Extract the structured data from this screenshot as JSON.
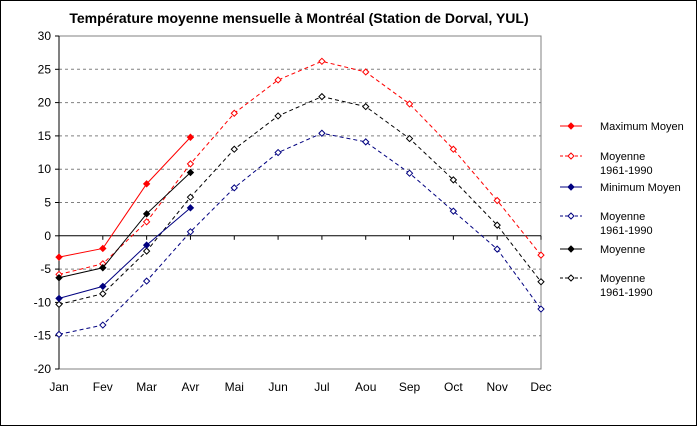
{
  "chart_data": {
    "type": "line",
    "title": "Température moyenne mensuelle à Montréal (Station de Dorval, YUL)",
    "xlabel": "",
    "ylabel": "",
    "categories": [
      "Jan",
      "Fev",
      "Mar",
      "Avr",
      "Mai",
      "Jun",
      "Jul",
      "Aou",
      "Sep",
      "Oct",
      "Nov",
      "Dec"
    ],
    "ylim": [
      -20,
      30
    ],
    "yticks": [
      -20,
      -15,
      -10,
      -5,
      0,
      5,
      10,
      15,
      20,
      25,
      30
    ],
    "grid": "horizontal-dashed",
    "legend_position": "right",
    "series": [
      {
        "name": "Maximum Moyen",
        "color": "#ff0000",
        "style": "solid",
        "marker": "filled-diamond",
        "values": [
          -3.2,
          -1.9,
          7.8,
          14.8,
          null,
          null,
          null,
          null,
          null,
          null,
          null,
          null
        ]
      },
      {
        "name": "Moyenne\n1961-1990",
        "color": "#ff0000",
        "style": "dashed",
        "marker": "open-diamond",
        "values": [
          -5.8,
          -4.2,
          2.1,
          10.8,
          18.4,
          23.4,
          26.2,
          24.6,
          19.8,
          13.0,
          5.3,
          -2.9
        ]
      },
      {
        "name": "Minimum Moyen",
        "color": "#000080",
        "style": "solid",
        "marker": "filled-diamond",
        "values": [
          -9.4,
          -7.6,
          -1.4,
          4.2,
          null,
          null,
          null,
          null,
          null,
          null,
          null,
          null
        ]
      },
      {
        "name": "Moyenne\n1961-1990",
        "color": "#000080",
        "style": "dashed",
        "marker": "open-diamond",
        "values": [
          -14.8,
          -13.4,
          -6.8,
          0.6,
          7.2,
          12.5,
          15.4,
          14.1,
          9.4,
          3.7,
          -2.0,
          -11.0
        ]
      },
      {
        "name": "Moyenne",
        "color": "#000000",
        "style": "solid",
        "marker": "filled-diamond",
        "values": [
          -6.3,
          -4.8,
          3.3,
          9.5,
          null,
          null,
          null,
          null,
          null,
          null,
          null,
          null
        ]
      },
      {
        "name": "Moyenne\n1961-1990",
        "color": "#000000",
        "style": "dashed",
        "marker": "open-diamond",
        "values": [
          -10.3,
          -8.7,
          -2.3,
          5.8,
          13.0,
          18.0,
          20.9,
          19.4,
          14.6,
          8.4,
          1.6,
          -6.9
        ]
      }
    ]
  }
}
